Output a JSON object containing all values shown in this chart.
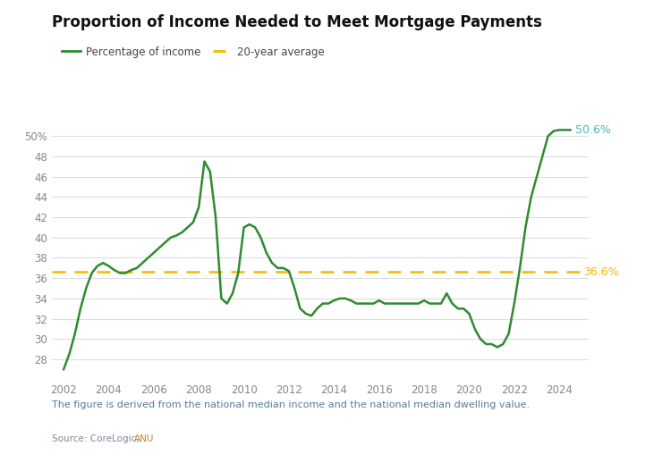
{
  "title": "Proportion of Income Needed to Meet Mortgage Payments",
  "line_color": "#2e8b2e",
  "average_color": "#f5b800",
  "average_value": 36.6,
  "last_value_label": "50.6%",
  "last_value_color": "#4db8c0",
  "average_label": "36.6%",
  "average_label_color": "#f5b800",
  "legend_line": "Percentage of income",
  "legend_avg": "20-year average",
  "footnote": "The figure is derived from the national median income and the national median dwelling value.",
  "footnote_color": "#5a7a9a",
  "source_prefix": "Source: CoreLogic, ",
  "source_prefix_color": "#7a8a9a",
  "source_link": "ANU",
  "source_link_color": "#c08030",
  "ylim": [
    26,
    52
  ],
  "yticks": [
    28,
    30,
    32,
    34,
    36,
    38,
    40,
    42,
    44,
    46,
    48,
    50
  ],
  "ytick_labels": [
    "28",
    "30",
    "32",
    "34",
    "36",
    "38",
    "40",
    "42",
    "44",
    "46",
    "48",
    "50%"
  ],
  "background_color": "#ffffff",
  "grid_color": "#dddddd",
  "tick_color": "#888888",
  "data": {
    "years": [
      2002.0,
      2002.25,
      2002.5,
      2002.75,
      2003.0,
      2003.25,
      2003.5,
      2003.75,
      2004.0,
      2004.25,
      2004.5,
      2004.75,
      2005.0,
      2005.25,
      2005.5,
      2005.75,
      2006.0,
      2006.25,
      2006.5,
      2006.75,
      2007.0,
      2007.25,
      2007.5,
      2007.75,
      2008.0,
      2008.25,
      2008.5,
      2008.75,
      2009.0,
      2009.25,
      2009.5,
      2009.75,
      2010.0,
      2010.25,
      2010.5,
      2010.75,
      2011.0,
      2011.25,
      2011.5,
      2011.75,
      2012.0,
      2012.25,
      2012.5,
      2012.75,
      2013.0,
      2013.25,
      2013.5,
      2013.75,
      2014.0,
      2014.25,
      2014.5,
      2014.75,
      2015.0,
      2015.25,
      2015.5,
      2015.75,
      2016.0,
      2016.25,
      2016.5,
      2016.75,
      2017.0,
      2017.25,
      2017.5,
      2017.75,
      2018.0,
      2018.25,
      2018.5,
      2018.75,
      2019.0,
      2019.25,
      2019.5,
      2019.75,
      2020.0,
      2020.25,
      2020.5,
      2020.75,
      2021.0,
      2021.25,
      2021.5,
      2021.75,
      2022.0,
      2022.25,
      2022.5,
      2022.75,
      2023.0,
      2023.25,
      2023.5,
      2023.75,
      2024.0,
      2024.5
    ],
    "values": [
      27.0,
      28.5,
      30.5,
      33.0,
      35.0,
      36.5,
      37.2,
      37.5,
      37.2,
      36.8,
      36.5,
      36.5,
      36.8,
      37.0,
      37.5,
      38.0,
      38.5,
      39.0,
      39.5,
      40.0,
      40.2,
      40.5,
      41.0,
      41.5,
      43.0,
      47.5,
      46.5,
      42.0,
      34.0,
      33.5,
      34.5,
      36.5,
      41.0,
      41.3,
      41.0,
      40.0,
      38.5,
      37.5,
      37.0,
      37.0,
      36.7,
      35.0,
      33.0,
      32.5,
      32.3,
      33.0,
      33.5,
      33.5,
      33.8,
      34.0,
      34.0,
      33.8,
      33.5,
      33.5,
      33.5,
      33.5,
      33.8,
      33.5,
      33.5,
      33.5,
      33.5,
      33.5,
      33.5,
      33.5,
      33.8,
      33.5,
      33.5,
      33.5,
      34.5,
      33.5,
      33.0,
      33.0,
      32.5,
      31.0,
      30.0,
      29.5,
      29.5,
      29.2,
      29.5,
      30.5,
      33.5,
      37.0,
      41.0,
      44.0,
      46.0,
      48.0,
      50.0,
      50.5,
      50.6,
      50.6
    ]
  }
}
